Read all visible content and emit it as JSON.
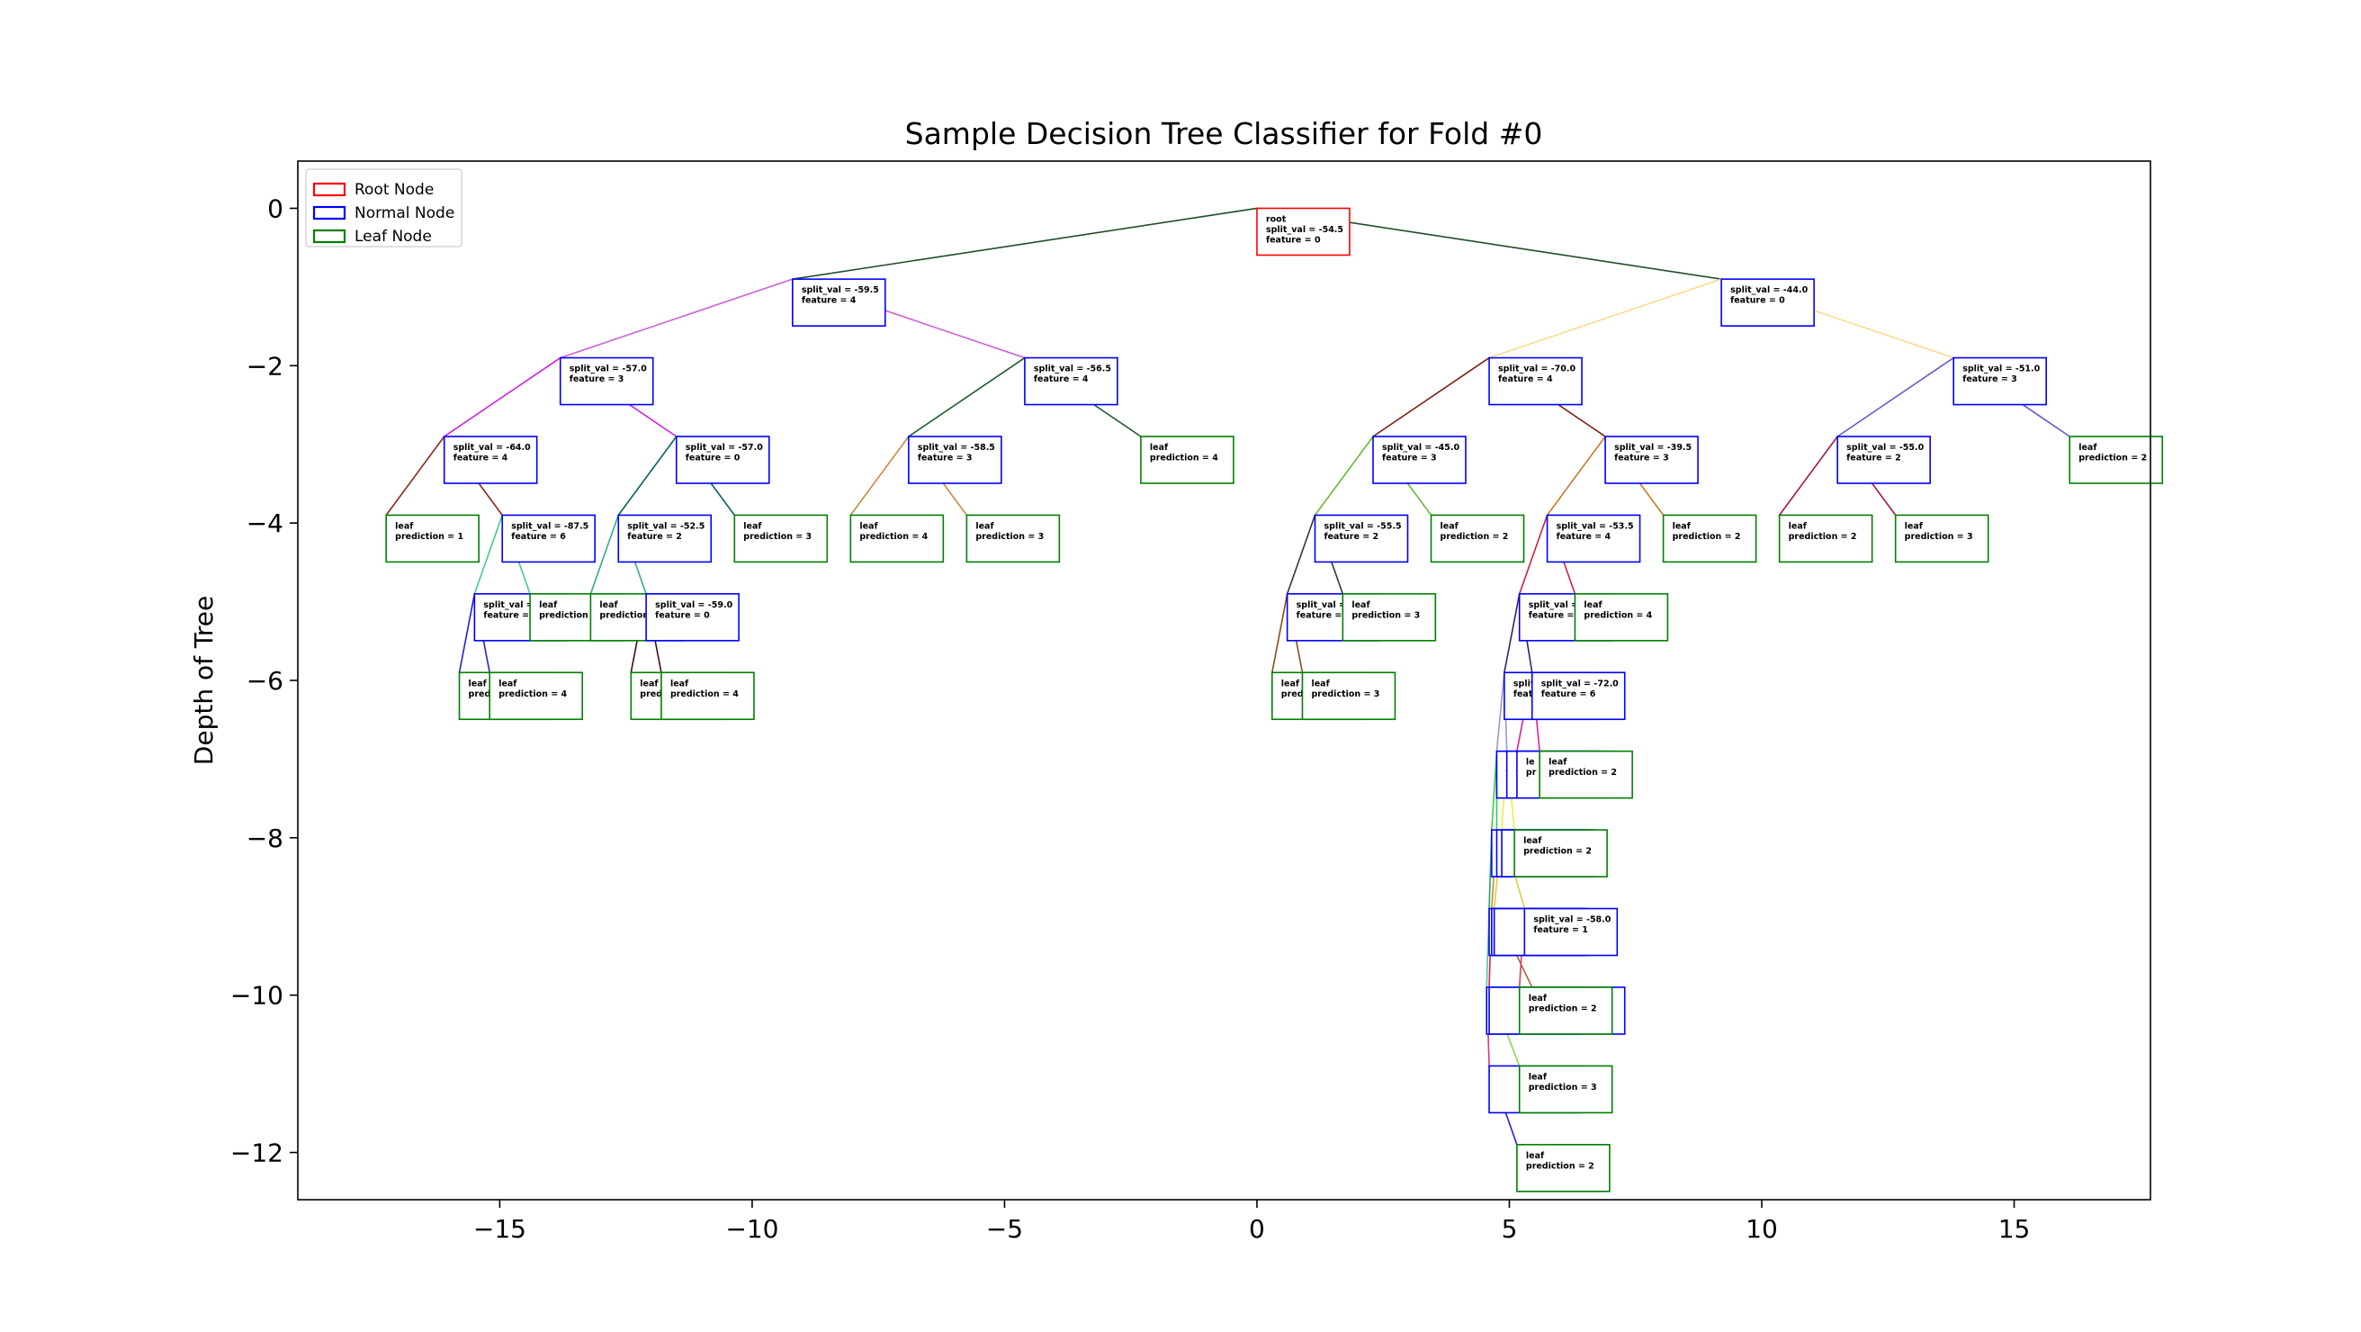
{
  "chart_data": {
    "type": "tree",
    "title": "Sample Decision Tree Classifier for Fold #0",
    "xlabel": "",
    "ylabel": "Depth of Tree",
    "xlim": [
      -19,
      17.7
    ],
    "ylim": [
      -12.6,
      0.6
    ],
    "xticks": [
      -15,
      -10,
      -5,
      0,
      5,
      10,
      15
    ],
    "yticks": [
      0,
      -2,
      -4,
      -6,
      -8,
      -10,
      -12
    ],
    "legend": {
      "placement": "top-left",
      "entries": [
        {
          "label": "Root Node",
          "color": "#ff0000"
        },
        {
          "label": "Normal Node",
          "color": "#0000ff"
        },
        {
          "label": "Leaf Node",
          "color": "#008000"
        }
      ]
    },
    "nodes": [
      {
        "id": "root",
        "type": "root",
        "x": 0.0,
        "y": 0,
        "lines": [
          "root",
          "split_val = -54.5",
          "feature =  0"
        ]
      },
      {
        "id": "n1",
        "type": "normal",
        "x": -9.2,
        "y": -0.9,
        "lines": [
          "split_val =  -59.5",
          "feature =  4"
        ]
      },
      {
        "id": "n2",
        "type": "normal",
        "x": 9.2,
        "y": -0.9,
        "lines": [
          "split_val =  -44.0",
          "feature =  0"
        ]
      },
      {
        "id": "n3",
        "type": "normal",
        "x": -13.8,
        "y": -1.9,
        "lines": [
          "split_val =  -57.0",
          "feature =  3"
        ]
      },
      {
        "id": "n4",
        "type": "normal",
        "x": -4.6,
        "y": -1.9,
        "lines": [
          "split_val =  -56.5",
          "feature =  4"
        ]
      },
      {
        "id": "n5",
        "type": "normal",
        "x": 4.6,
        "y": -1.9,
        "lines": [
          "split_val =  -70.0",
          "feature =  4"
        ]
      },
      {
        "id": "n6",
        "type": "normal",
        "x": 13.8,
        "y": -1.9,
        "lines": [
          "split_val =  -51.0",
          "feature =  3"
        ]
      },
      {
        "id": "n7",
        "type": "normal",
        "x": -16.1,
        "y": -2.9,
        "lines": [
          "split_val =  -64.0",
          "feature =  4"
        ]
      },
      {
        "id": "n8",
        "type": "normal",
        "x": -11.5,
        "y": -2.9,
        "lines": [
          "split_val =  -57.0",
          "feature =  0"
        ]
      },
      {
        "id": "n9",
        "type": "normal",
        "x": -6.9,
        "y": -2.9,
        "lines": [
          "split_val =  -58.5",
          "feature =  3"
        ]
      },
      {
        "id": "l1",
        "type": "leaf",
        "x": -2.3,
        "y": -2.9,
        "lines": [
          "leaf",
          "prediction = 4"
        ]
      },
      {
        "id": "n10",
        "type": "normal",
        "x": 2.3,
        "y": -2.9,
        "lines": [
          "split_val =  -45.0",
          "feature =  3"
        ]
      },
      {
        "id": "n11",
        "type": "normal",
        "x": 6.9,
        "y": -2.9,
        "lines": [
          "split_val =  -39.5",
          "feature =  3"
        ]
      },
      {
        "id": "n12",
        "type": "normal",
        "x": 11.5,
        "y": -2.9,
        "lines": [
          "split_val =  -55.0",
          "feature =  2"
        ]
      },
      {
        "id": "l2",
        "type": "leaf",
        "x": 16.1,
        "y": -2.9,
        "lines": [
          "leaf",
          "prediction = 2"
        ]
      },
      {
        "id": "l3",
        "type": "leaf",
        "x": -17.25,
        "y": -3.9,
        "lines": [
          "leaf",
          "prediction = 1"
        ]
      },
      {
        "id": "n13",
        "type": "normal",
        "x": -14.95,
        "y": -3.9,
        "lines": [
          "split_val =  -87.5",
          "feature =  6"
        ]
      },
      {
        "id": "n14",
        "type": "normal",
        "x": -12.65,
        "y": -3.9,
        "lines": [
          "split_val =  -52.5",
          "feature =  2"
        ]
      },
      {
        "id": "l4",
        "type": "leaf",
        "x": -10.35,
        "y": -3.9,
        "lines": [
          "leaf",
          "prediction = 3"
        ]
      },
      {
        "id": "l5",
        "type": "leaf",
        "x": -8.05,
        "y": -3.9,
        "lines": [
          "leaf",
          "prediction = 4"
        ]
      },
      {
        "id": "l6",
        "type": "leaf",
        "x": -5.75,
        "y": -3.9,
        "lines": [
          "leaf",
          "prediction = 3"
        ]
      },
      {
        "id": "n15",
        "type": "normal",
        "x": 1.15,
        "y": -3.9,
        "lines": [
          "split_val =  -55.5",
          "feature =  2"
        ]
      },
      {
        "id": "l7",
        "type": "leaf",
        "x": 3.45,
        "y": -3.9,
        "lines": [
          "leaf",
          "prediction = 2"
        ]
      },
      {
        "id": "n16",
        "type": "normal",
        "x": 5.75,
        "y": -3.9,
        "lines": [
          "split_val =  -53.5",
          "feature =  4"
        ]
      },
      {
        "id": "l8",
        "type": "leaf",
        "x": 8.05,
        "y": -3.9,
        "lines": [
          "leaf",
          "prediction = 2"
        ]
      },
      {
        "id": "l9",
        "type": "leaf",
        "x": 10.35,
        "y": -3.9,
        "lines": [
          "leaf",
          "prediction = 2"
        ]
      },
      {
        "id": "l10",
        "type": "leaf",
        "x": 12.65,
        "y": -3.9,
        "lines": [
          "leaf",
          "prediction = 3"
        ]
      },
      {
        "id": "n17",
        "type": "normal",
        "x": -15.5,
        "y": -4.9,
        "lines": [
          "split_val =",
          "feature ="
        ]
      },
      {
        "id": "l11",
        "type": "leaf",
        "x": -14.4,
        "y": -4.9,
        "lines": [
          "leaf",
          "prediction"
        ]
      },
      {
        "id": "l12",
        "type": "leaf",
        "x": -13.2,
        "y": -4.9,
        "lines": [
          "leaf",
          "prediction"
        ]
      },
      {
        "id": "n18",
        "type": "normal",
        "x": -12.1,
        "y": -4.9,
        "lines": [
          "split_val =  -59.0",
          "feature =  0"
        ]
      },
      {
        "id": "n19",
        "type": "normal",
        "x": 0.6,
        "y": -4.9,
        "lines": [
          "split_val =",
          "feature ="
        ]
      },
      {
        "id": "l13",
        "type": "leaf",
        "x": 1.7,
        "y": -4.9,
        "lines": [
          "leaf",
          "prediction = 3"
        ]
      },
      {
        "id": "n20",
        "type": "normal",
        "x": 5.2,
        "y": -4.9,
        "lines": [
          "split_val =",
          "feature ="
        ]
      },
      {
        "id": "l14",
        "type": "leaf",
        "x": 6.3,
        "y": -4.9,
        "lines": [
          "leaf",
          "prediction = 4"
        ]
      },
      {
        "id": "l15",
        "type": "leaf",
        "x": -15.8,
        "y": -5.9,
        "lines": [
          "leaf",
          "pred"
        ]
      },
      {
        "id": "l16",
        "type": "leaf",
        "x": -15.2,
        "y": -5.9,
        "lines": [
          "leaf",
          "prediction = 4"
        ]
      },
      {
        "id": "l17",
        "type": "leaf",
        "x": -12.4,
        "y": -5.9,
        "lines": [
          "leaf",
          "pred"
        ]
      },
      {
        "id": "l18",
        "type": "leaf",
        "x": -11.8,
        "y": -5.9,
        "lines": [
          "leaf",
          "prediction = 4"
        ]
      },
      {
        "id": "l19",
        "type": "leaf",
        "x": 0.3,
        "y": -5.9,
        "lines": [
          "leaf",
          "pred"
        ]
      },
      {
        "id": "l20",
        "type": "leaf",
        "x": 0.9,
        "y": -5.9,
        "lines": [
          "leaf",
          "prediction = 3"
        ]
      },
      {
        "id": "n21",
        "type": "normal",
        "x": 4.9,
        "y": -5.9,
        "lines": [
          "split",
          "featu"
        ]
      },
      {
        "id": "n22",
        "type": "normal",
        "x": 5.45,
        "y": -5.9,
        "lines": [
          "split_val =  -72.0",
          "feature =  6"
        ]
      },
      {
        "id": "n23",
        "type": "normal",
        "x": 4.75,
        "y": -6.9,
        "lines": [
          "s",
          "f"
        ]
      },
      {
        "id": "n24",
        "type": "normal",
        "x": 4.95,
        "y": -6.9,
        "lines": [
          "s",
          "f"
        ]
      },
      {
        "id": "n25",
        "type": "normal",
        "x": 5.15,
        "y": -6.9,
        "lines": [
          "le",
          "pr"
        ]
      },
      {
        "id": "l21",
        "type": "leaf",
        "x": 5.6,
        "y": -6.9,
        "lines": [
          "leaf",
          "prediction = 2"
        ]
      },
      {
        "id": "n26",
        "type": "normal",
        "x": 4.65,
        "y": -7.9,
        "lines": [
          "",
          ""
        ]
      },
      {
        "id": "n27",
        "type": "normal",
        "x": 4.75,
        "y": -7.9,
        "lines": [
          "",
          ""
        ]
      },
      {
        "id": "n28",
        "type": "normal",
        "x": 4.85,
        "y": -7.9,
        "lines": [
          "",
          ""
        ]
      },
      {
        "id": "l22",
        "type": "leaf",
        "x": 5.1,
        "y": -7.9,
        "lines": [
          "leaf",
          "prediction = 2"
        ]
      },
      {
        "id": "n29",
        "type": "normal",
        "x": 4.6,
        "y": -8.9,
        "lines": [
          "",
          ""
        ]
      },
      {
        "id": "n30",
        "type": "normal",
        "x": 4.65,
        "y": -8.9,
        "lines": [
          "",
          ""
        ]
      },
      {
        "id": "n31",
        "type": "normal",
        "x": 4.7,
        "y": -8.9,
        "lines": [
          "",
          ""
        ]
      },
      {
        "id": "n32",
        "type": "normal",
        "x": 5.3,
        "y": -8.9,
        "lines": [
          "split_val =  -58.0",
          "feature =  1"
        ]
      },
      {
        "id": "n33",
        "type": "normal",
        "x": 4.55,
        "y": -9.9,
        "lines": [
          "",
          ""
        ]
      },
      {
        "id": "n34",
        "type": "normal",
        "x": 4.6,
        "y": -9.9,
        "lines": [
          "",
          ""
        ]
      },
      {
        "id": "n35",
        "type": "normal",
        "x": 5.45,
        "y": -9.9,
        "lines": [
          "",
          ""
        ]
      },
      {
        "id": "l23",
        "type": "leaf",
        "x": 5.2,
        "y": -9.9,
        "lines": [
          "leaf",
          "prediction = 2"
        ]
      },
      {
        "id": "n36",
        "type": "normal",
        "x": 4.6,
        "y": -10.9,
        "lines": [
          "",
          ""
        ]
      },
      {
        "id": "l24",
        "type": "leaf",
        "x": 5.2,
        "y": -10.9,
        "lines": [
          "leaf",
          "prediction = 3"
        ]
      },
      {
        "id": "l25",
        "type": "leaf",
        "x": 5.15,
        "y": -11.9,
        "lines": [
          "leaf",
          "prediction = 2"
        ]
      }
    ],
    "edges": [
      {
        "from": "root",
        "to": "n1",
        "color": "#1f4d2a"
      },
      {
        "from": "root",
        "to": "n2",
        "color": "#1f4d2a"
      },
      {
        "from": "n1",
        "to": "n3",
        "color": "#d060d8"
      },
      {
        "from": "n1",
        "to": "n4",
        "color": "#d060d8"
      },
      {
        "from": "n2",
        "to": "n5",
        "color": "#f8dc8a"
      },
      {
        "from": "n2",
        "to": "n6",
        "color": "#f8dc8a"
      },
      {
        "from": "n3",
        "to": "n7",
        "color": "#cc22dd"
      },
      {
        "from": "n3",
        "to": "n8",
        "color": "#cc22dd"
      },
      {
        "from": "n4",
        "to": "n9",
        "color": "#1e5a2a"
      },
      {
        "from": "n4",
        "to": "l1",
        "color": "#1e5a2a"
      },
      {
        "from": "n5",
        "to": "n10",
        "color": "#7a2010"
      },
      {
        "from": "n5",
        "to": "n11",
        "color": "#7a2010"
      },
      {
        "from": "n6",
        "to": "n12",
        "color": "#6a5acd"
      },
      {
        "from": "n6",
        "to": "l2",
        "color": "#6a5acd"
      },
      {
        "from": "n7",
        "to": "l3",
        "color": "#8b2a1a"
      },
      {
        "from": "n7",
        "to": "n13",
        "color": "#8b2a1a"
      },
      {
        "from": "n8",
        "to": "n14",
        "color": "#0a6060"
      },
      {
        "from": "n8",
        "to": "l4",
        "color": "#0a6060"
      },
      {
        "from": "n9",
        "to": "l5",
        "color": "#c88a40"
      },
      {
        "from": "n9",
        "to": "l6",
        "color": "#c88a40"
      },
      {
        "from": "n10",
        "to": "n15",
        "color": "#66bb33"
      },
      {
        "from": "n10",
        "to": "l7",
        "color": "#66bb33"
      },
      {
        "from": "n11",
        "to": "n16",
        "color": "#c87a2a"
      },
      {
        "from": "n11",
        "to": "l8",
        "color": "#c87a2a"
      },
      {
        "from": "n12",
        "to": "l9",
        "color": "#a01850"
      },
      {
        "from": "n12",
        "to": "l10",
        "color": "#a01850"
      },
      {
        "from": "n13",
        "to": "n17",
        "color": "#44cc88"
      },
      {
        "from": "n13",
        "to": "l11",
        "color": "#44cc88"
      },
      {
        "from": "n14",
        "to": "l12",
        "color": "#33aa88"
      },
      {
        "from": "n14",
        "to": "n18",
        "color": "#33aa88"
      },
      {
        "from": "n15",
        "to": "n19",
        "color": "#333344"
      },
      {
        "from": "n15",
        "to": "l13",
        "color": "#333344"
      },
      {
        "from": "n16",
        "to": "n20",
        "color": "#cc2244"
      },
      {
        "from": "n16",
        "to": "l14",
        "color": "#cc2244"
      },
      {
        "from": "n17",
        "to": "l15",
        "color": "#2222cc"
      },
      {
        "from": "n17",
        "to": "l16",
        "color": "#2222cc"
      },
      {
        "from": "n18",
        "to": "l17",
        "color": "#3a1010"
      },
      {
        "from": "n18",
        "to": "l18",
        "color": "#3a1010"
      },
      {
        "from": "n19",
        "to": "l19",
        "color": "#8b4a1a"
      },
      {
        "from": "n19",
        "to": "l20",
        "color": "#8b4a1a"
      },
      {
        "from": "n20",
        "to": "n21",
        "color": "#332266"
      },
      {
        "from": "n20",
        "to": "n22",
        "color": "#332266"
      },
      {
        "from": "n21",
        "to": "n23",
        "color": "#9999cc"
      },
      {
        "from": "n21",
        "to": "n24",
        "color": "#9999cc"
      },
      {
        "from": "n22",
        "to": "n25",
        "color": "#dd2299"
      },
      {
        "from": "n22",
        "to": "l21",
        "color": "#dd2299"
      },
      {
        "from": "n23",
        "to": "n26",
        "color": "#33cc55"
      },
      {
        "from": "n23",
        "to": "n27",
        "color": "#33cc55"
      },
      {
        "from": "n24",
        "to": "n28",
        "color": "#eeee44"
      },
      {
        "from": "n24",
        "to": "l22",
        "color": "#eeee44"
      },
      {
        "from": "n26",
        "to": "n29",
        "color": "#22aa66"
      },
      {
        "from": "n27",
        "to": "n30",
        "color": "#c88a40"
      },
      {
        "from": "n28",
        "to": "n31",
        "color": "#ddcc44"
      },
      {
        "from": "n28",
        "to": "n32",
        "color": "#ddcc44"
      },
      {
        "from": "n29",
        "to": "n33",
        "color": "#55cc88"
      },
      {
        "from": "n30",
        "to": "n34",
        "color": "#cc2266"
      },
      {
        "from": "n31",
        "to": "n35",
        "color": "#aa6633"
      },
      {
        "from": "n32",
        "to": "l23",
        "color": "#cc4466"
      },
      {
        "from": "n33",
        "to": "n36",
        "color": "#dd3388"
      },
      {
        "from": "n34",
        "to": "l24",
        "color": "#88dd44"
      },
      {
        "from": "n36",
        "to": "l25",
        "color": "#2222dd"
      }
    ]
  }
}
